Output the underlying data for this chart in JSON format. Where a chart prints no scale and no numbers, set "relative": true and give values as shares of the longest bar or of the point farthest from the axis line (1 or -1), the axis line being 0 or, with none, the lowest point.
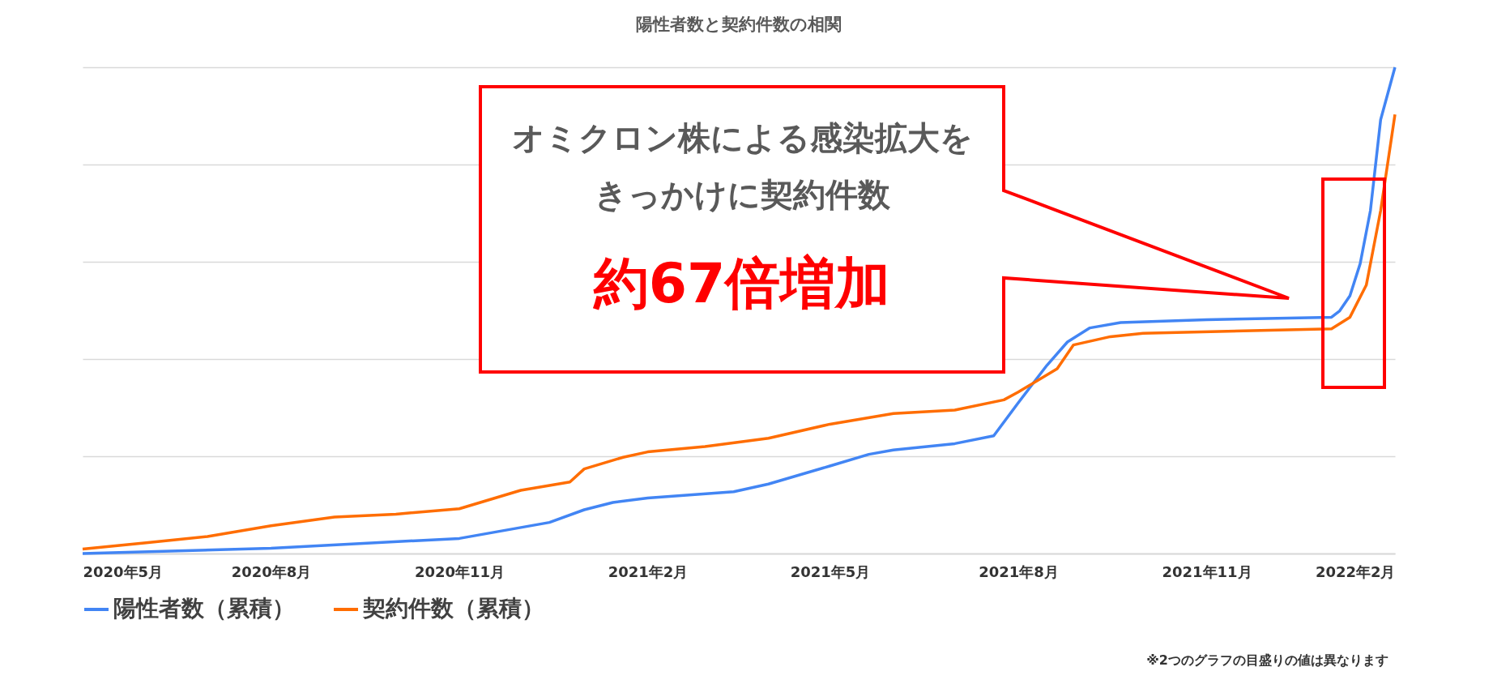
{
  "chart_data": {
    "type": "line",
    "title": "陽性者数と契約件数の相関",
    "relative": true,
    "grid": "y",
    "legend": "bottom",
    "line_style": "solid",
    "marker": "none",
    "xlim": [
      "2020-05-01",
      "2022-02-01"
    ],
    "xticks": [
      {
        "value": "2020-05-01",
        "label": "2020年5月"
      },
      {
        "value": "2020-08-01",
        "label": "2020年8月"
      },
      {
        "value": "2020-11-01",
        "label": "2020年11月"
      },
      {
        "value": "2021-02-01",
        "label": "2021年2月"
      },
      {
        "value": "2021-05-01",
        "label": "2021年5月"
      },
      {
        "value": "2021-08-01",
        "label": "2021年8月"
      },
      {
        "value": "2021-11-01",
        "label": "2021年11月"
      },
      {
        "value": "2022-02-01",
        "label": "2022年2月"
      }
    ],
    "series": [
      {
        "name": "陽性者数（累積）",
        "color": "#4285f4",
        "x": [
          "2020-05-01",
          "2020-08-01",
          "2020-11-01",
          "2020-12-15",
          "2021-01-01",
          "2021-01-15",
          "2021-02-01",
          "2021-03-15",
          "2021-04-01",
          "2021-05-01",
          "2021-05-20",
          "2021-06-01",
          "2021-07-01",
          "2021-07-20",
          "2021-08-01",
          "2021-08-15",
          "2021-08-25",
          "2021-09-05",
          "2021-09-20",
          "2021-11-01",
          "2022-01-01",
          "2022-01-05",
          "2022-01-10",
          "2022-01-15",
          "2022-01-20",
          "2022-01-25",
          "2022-02-01"
        ],
        "values": [
          0,
          0.011,
          0.031,
          0.064,
          0.09,
          0.105,
          0.114,
          0.127,
          0.143,
          0.18,
          0.204,
          0.213,
          0.226,
          0.242,
          0.31,
          0.387,
          0.435,
          0.464,
          0.475,
          0.481,
          0.486,
          0.499,
          0.53,
          0.596,
          0.705,
          0.892,
          1.0
        ]
      },
      {
        "name": "契約件数（累積）",
        "color": "#ff6d01",
        "x": [
          "2020-05-01",
          "2020-06-01",
          "2020-07-01",
          "2020-08-01",
          "2020-09-01",
          "2020-10-01",
          "2020-11-01",
          "2020-12-01",
          "2020-12-25",
          "2021-01-01",
          "2021-01-20",
          "2021-02-01",
          "2021-03-01",
          "2021-04-01",
          "2021-05-01",
          "2021-06-01",
          "2021-07-01",
          "2021-07-25",
          "2021-08-01",
          "2021-08-20",
          "2021-08-28",
          "2021-09-15",
          "2021-10-01",
          "2022-01-01",
          "2022-01-10",
          "2022-01-18",
          "2022-01-25",
          "2022-02-01"
        ],
        "values": [
          0.009,
          0.022,
          0.035,
          0.057,
          0.075,
          0.081,
          0.092,
          0.13,
          0.147,
          0.174,
          0.198,
          0.209,
          0.22,
          0.237,
          0.266,
          0.288,
          0.295,
          0.316,
          0.332,
          0.38,
          0.429,
          0.446,
          0.453,
          0.462,
          0.486,
          0.552,
          0.705,
          0.903
        ]
      }
    ],
    "annotations": [
      "オミクロン株による感染拡大をきっかけに契約件数",
      "約67倍増加",
      "※2つのグラフの目盛りの値は異なります"
    ]
  }
}
